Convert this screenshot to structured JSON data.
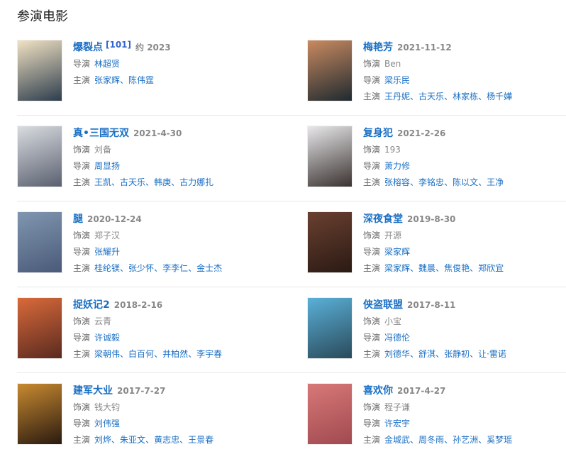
{
  "section_title": "参演电影",
  "labels": {
    "role": "饰演",
    "director": "导演",
    "starring": "主演",
    "sep": "、"
  },
  "movies": [
    {
      "title": "爆裂点",
      "badge": "[101]",
      "date": "约 2023",
      "role": null,
      "director": "林超贤",
      "stars": [
        "张家辉",
        "陈伟霆"
      ],
      "poster_colors": [
        "#f1e2c3",
        "#2d3d4d"
      ]
    },
    {
      "title": "梅艳芳",
      "date": "2021-11-12",
      "role": "Ben",
      "director": "梁乐民",
      "stars": [
        "王丹妮",
        "古天乐",
        "林家栋",
        "杨千嬅"
      ],
      "poster_colors": [
        "#c98a60",
        "#1f2a30"
      ]
    },
    {
      "title": "真•三国无双",
      "date": "2021-4-30",
      "role": "刘备",
      "director": "周显扬",
      "stars": [
        "王凯",
        "古天乐",
        "韩庚",
        "古力娜扎"
      ],
      "poster_colors": [
        "#d9dce0",
        "#5a6070"
      ]
    },
    {
      "title": "复身犯",
      "date": "2021-2-26",
      "role": "193",
      "director": "萧力修",
      "stars": [
        "张榕容",
        "李铭忠",
        "陈以文",
        "王净"
      ],
      "poster_colors": [
        "#e8e8ea",
        "#3a3230"
      ]
    },
    {
      "title": "腿",
      "date": "2020-12-24",
      "role": "郑子汉",
      "director": "张耀升",
      "stars": [
        "桂纶镁",
        "张少怀",
        "李李仁",
        "金士杰"
      ],
      "poster_colors": [
        "#8096b0",
        "#4a5a78"
      ]
    },
    {
      "title": "深夜食堂",
      "date": "2019-8-30",
      "role": "开源",
      "director": "梁家辉",
      "stars": [
        "梁家辉",
        "魏晨",
        "焦俊艳",
        "郑欣宜"
      ],
      "poster_colors": [
        "#6a4030",
        "#2a1a14"
      ]
    },
    {
      "title": "捉妖记2",
      "date": "2018-2-16",
      "role": "云青",
      "director": "许诚毅",
      "stars": [
        "梁朝伟",
        "白百何",
        "井柏然",
        "李宇春"
      ],
      "poster_colors": [
        "#d96a3a",
        "#5a2a20"
      ]
    },
    {
      "title": "侠盗联盟",
      "date": "2017-8-11",
      "role": "小宝",
      "director": "冯德伦",
      "stars": [
        "刘德华",
        "舒淇",
        "张静初",
        "让·雷诺"
      ],
      "poster_colors": [
        "#5ab0d8",
        "#2a4a5a"
      ]
    },
    {
      "title": "建军大业",
      "date": "2017-7-27",
      "role": "钱大钧",
      "director": "刘伟强",
      "stars": [
        "刘烨",
        "朱亚文",
        "黄志忠",
        "王景春"
      ],
      "poster_colors": [
        "#c88a30",
        "#2a1a10"
      ]
    },
    {
      "title": "喜欢你",
      "date": "2017-4-27",
      "role": "程子谦",
      "director": "许宏宇",
      "stars": [
        "金城武",
        "周冬雨",
        "孙艺洲",
        "奚梦瑶"
      ],
      "poster_colors": [
        "#d87878",
        "#a04a50"
      ]
    }
  ]
}
